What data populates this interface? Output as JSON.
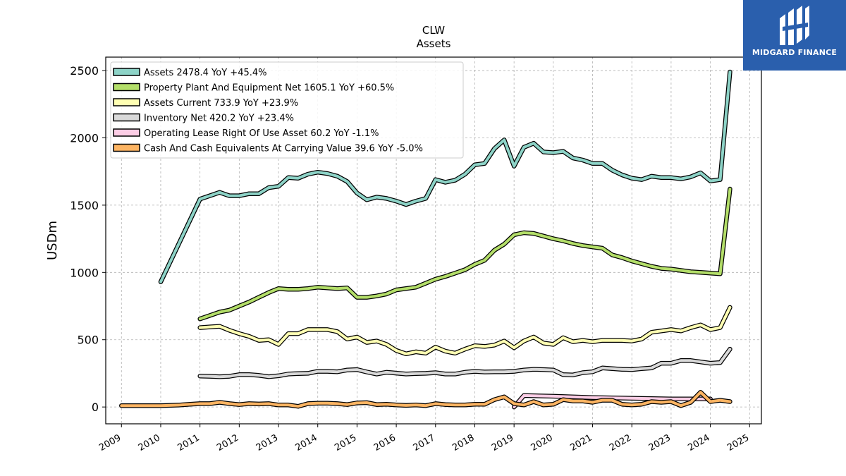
{
  "chart_data": {
    "type": "line",
    "title": "CLW",
    "subtitle": "Assets",
    "ylabel": "USDm",
    "xlabel": "",
    "xlim": [
      2008.6,
      2025.3
    ],
    "ylim": [
      -125,
      2600
    ],
    "yticks": [
      0,
      500,
      1000,
      1500,
      2000,
      2500
    ],
    "xticks": [
      "2009",
      "2010",
      "2011",
      "2012",
      "2013",
      "2014",
      "2015",
      "2016",
      "2017",
      "2018",
      "2019",
      "2020",
      "2021",
      "2022",
      "2023",
      "2024",
      "2025"
    ],
    "grid": true,
    "legend_position": "top-left",
    "series": [
      {
        "name": "Assets  2478.4 YoY +45.4%",
        "color": "#8dd3c7",
        "x": [
          2010.0,
          2011.0,
          2011.25,
          2011.5,
          2011.75,
          2012.0,
          2012.25,
          2012.5,
          2012.75,
          2013.0,
          2013.25,
          2013.5,
          2013.75,
          2014.0,
          2014.25,
          2014.5,
          2014.75,
          2015.0,
          2015.25,
          2015.5,
          2015.75,
          2016.0,
          2016.25,
          2016.5,
          2016.75,
          2017.0,
          2017.25,
          2017.5,
          2017.75,
          2018.0,
          2018.25,
          2018.5,
          2018.75,
          2019.0,
          2019.25,
          2019.5,
          2019.75,
          2020.0,
          2020.25,
          2020.5,
          2020.75,
          2021.0,
          2021.25,
          2021.5,
          2021.75,
          2022.0,
          2022.25,
          2022.5,
          2022.75,
          2023.0,
          2023.25,
          2023.5,
          2023.75,
          2024.0,
          2024.25,
          2024.5
        ],
        "values": [
          930,
          1545,
          1570,
          1595,
          1570,
          1570,
          1585,
          1585,
          1630,
          1640,
          1705,
          1700,
          1730,
          1745,
          1735,
          1715,
          1675,
          1590,
          1540,
          1560,
          1550,
          1530,
          1505,
          1530,
          1550,
          1690,
          1670,
          1685,
          1730,
          1800,
          1810,
          1920,
          1985,
          1790,
          1930,
          1960,
          1895,
          1890,
          1900,
          1850,
          1835,
          1810,
          1810,
          1760,
          1725,
          1700,
          1690,
          1715,
          1705,
          1705,
          1695,
          1710,
          1740,
          1680,
          1690,
          2490
        ]
      },
      {
        "name": "Property Plant And Equipment Net  1605.1 YoY +60.5%",
        "color": "#b3de69",
        "x": [
          2011.0,
          2011.25,
          2011.5,
          2011.75,
          2012.0,
          2012.25,
          2012.5,
          2012.75,
          2013.0,
          2013.25,
          2013.5,
          2013.75,
          2014.0,
          2014.25,
          2014.5,
          2014.75,
          2015.0,
          2015.25,
          2015.5,
          2015.75,
          2016.0,
          2016.25,
          2016.5,
          2016.75,
          2017.0,
          2017.25,
          2017.5,
          2017.75,
          2018.0,
          2018.25,
          2018.5,
          2018.75,
          2019.0,
          2019.25,
          2019.5,
          2019.75,
          2020.0,
          2020.25,
          2020.5,
          2020.75,
          2021.0,
          2021.25,
          2021.5,
          2021.75,
          2022.0,
          2022.25,
          2022.5,
          2022.75,
          2023.0,
          2023.25,
          2023.5,
          2023.75,
          2024.0,
          2024.25,
          2024.5
        ],
        "values": [
          655,
          680,
          705,
          720,
          750,
          780,
          815,
          850,
          880,
          875,
          875,
          880,
          890,
          885,
          880,
          885,
          815,
          815,
          825,
          840,
          870,
          880,
          890,
          920,
          950,
          970,
          995,
          1020,
          1060,
          1090,
          1165,
          1210,
          1280,
          1295,
          1290,
          1270,
          1250,
          1235,
          1215,
          1200,
          1190,
          1180,
          1130,
          1110,
          1085,
          1065,
          1045,
          1030,
          1025,
          1015,
          1005,
          1000,
          995,
          990,
          1620
        ]
      },
      {
        "name": "Assets Current  733.9 YoY +23.9%",
        "color": "#ffffb3",
        "x": [
          2011.0,
          2011.25,
          2011.5,
          2011.75,
          2012.0,
          2012.25,
          2012.5,
          2012.75,
          2013.0,
          2013.25,
          2013.5,
          2013.75,
          2014.0,
          2014.25,
          2014.5,
          2014.75,
          2015.0,
          2015.25,
          2015.5,
          2015.75,
          2016.0,
          2016.25,
          2016.5,
          2016.75,
          2017.0,
          2017.25,
          2017.5,
          2017.75,
          2018.0,
          2018.25,
          2018.5,
          2018.75,
          2019.0,
          2019.25,
          2019.5,
          2019.75,
          2020.0,
          2020.25,
          2020.5,
          2020.75,
          2021.0,
          2021.25,
          2021.5,
          2021.75,
          2022.0,
          2022.25,
          2022.5,
          2022.75,
          2023.0,
          2023.25,
          2023.5,
          2023.75,
          2024.0,
          2024.25,
          2024.5
        ],
        "values": [
          590,
          595,
          600,
          570,
          545,
          525,
          495,
          500,
          465,
          545,
          545,
          575,
          575,
          575,
          560,
          505,
          520,
          480,
          490,
          465,
          420,
          395,
          410,
          400,
          445,
          415,
          400,
          430,
          455,
          450,
          460,
          490,
          440,
          490,
          520,
          475,
          465,
          515,
          485,
          495,
          485,
          495,
          495,
          495,
          490,
          505,
          555,
          565,
          575,
          565,
          590,
          610,
          575,
          590,
          740
        ]
      },
      {
        "name": "Inventory Net  420.2 YoY +23.4%",
        "color": "#d9d9d9",
        "x": [
          2011.0,
          2011.25,
          2011.5,
          2011.75,
          2012.0,
          2012.25,
          2012.5,
          2012.75,
          2013.0,
          2013.25,
          2013.5,
          2013.75,
          2014.0,
          2014.25,
          2014.5,
          2014.75,
          2015.0,
          2015.25,
          2015.5,
          2015.75,
          2016.0,
          2016.25,
          2016.5,
          2016.75,
          2017.0,
          2017.25,
          2017.5,
          2017.75,
          2018.0,
          2018.25,
          2018.5,
          2018.75,
          2019.0,
          2019.25,
          2019.5,
          2019.75,
          2020.0,
          2020.25,
          2020.5,
          2020.75,
          2021.0,
          2021.25,
          2021.5,
          2021.75,
          2022.0,
          2022.25,
          2022.5,
          2022.75,
          2023.0,
          2023.25,
          2023.5,
          2023.75,
          2024.0,
          2024.25,
          2024.5
        ],
        "values": [
          230,
          228,
          225,
          228,
          240,
          240,
          235,
          225,
          232,
          245,
          248,
          250,
          265,
          265,
          262,
          275,
          278,
          260,
          245,
          258,
          252,
          245,
          248,
          250,
          255,
          245,
          245,
          258,
          265,
          260,
          262,
          262,
          265,
          275,
          280,
          278,
          275,
          240,
          238,
          255,
          262,
          290,
          285,
          280,
          278,
          285,
          290,
          325,
          325,
          345,
          345,
          335,
          325,
          330,
          430
        ]
      },
      {
        "name": "Operating Lease Right Of Use Asset  60.2 YoY -1.1%",
        "color": "#fccde5",
        "x": [
          2019.0,
          2019.25,
          2020.0,
          2021.0,
          2022.0,
          2023.0,
          2023.5,
          2024.0
        ],
        "values": [
          0,
          85,
          80,
          70,
          65,
          60,
          60,
          60
        ]
      },
      {
        "name": "Cash And Cash Equivalents At Carrying Value  39.6 YoY -5.0%",
        "color": "#fdb462",
        "x": [
          2009.0,
          2009.5,
          2010.0,
          2010.5,
          2010.75,
          2011.0,
          2011.25,
          2011.5,
          2011.75,
          2012.0,
          2012.25,
          2012.5,
          2012.75,
          2013.0,
          2013.25,
          2013.5,
          2013.75,
          2014.0,
          2014.25,
          2014.5,
          2014.75,
          2015.0,
          2015.25,
          2015.5,
          2015.75,
          2016.0,
          2016.25,
          2016.5,
          2016.75,
          2017.0,
          2017.25,
          2017.5,
          2017.75,
          2018.0,
          2018.25,
          2018.5,
          2018.75,
          2019.0,
          2019.25,
          2019.5,
          2019.75,
          2020.0,
          2020.25,
          2020.5,
          2020.75,
          2021.0,
          2021.25,
          2021.5,
          2021.75,
          2022.0,
          2022.25,
          2022.5,
          2022.75,
          2023.0,
          2023.25,
          2023.5,
          2023.75,
          2024.0,
          2024.25,
          2024.5
        ],
        "values": [
          10,
          10,
          10,
          15,
          20,
          25,
          25,
          35,
          25,
          18,
          25,
          22,
          25,
          15,
          15,
          5,
          25,
          28,
          28,
          25,
          18,
          30,
          32,
          18,
          20,
          15,
          12,
          15,
          10,
          25,
          18,
          15,
          15,
          20,
          20,
          55,
          75,
          25,
          15,
          40,
          15,
          20,
          55,
          45,
          45,
          35,
          50,
          50,
          20,
          15,
          20,
          40,
          35,
          40,
          10,
          35,
          110,
          40,
          50,
          40
        ]
      }
    ]
  },
  "logo": {
    "text": "MIDGARD FINANCE",
    "icon": "midgard-logo-icon",
    "background": "#2a5fad"
  }
}
